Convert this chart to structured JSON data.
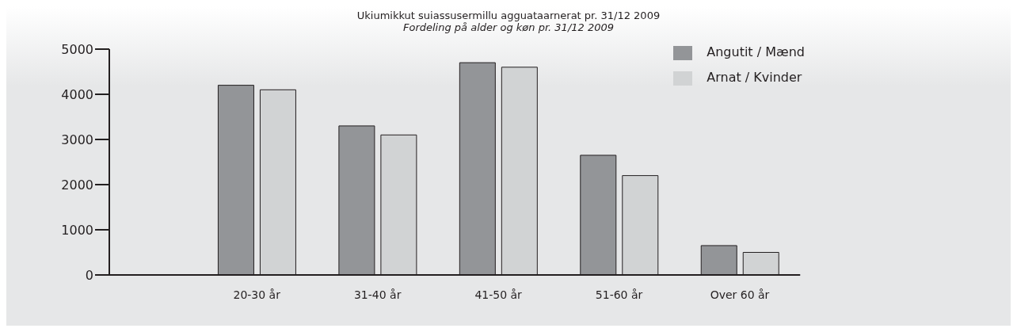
{
  "chart_data": {
    "type": "bar",
    "title": "Ukiumikkut suiassusermillu agguataarnerat pr. 31/12 2009",
    "subtitle": "Fordeling på alder og køn pr. 31/12 2009",
    "categories": [
      "20-30 år",
      "31-40 år",
      "41-50 år",
      "51-60 år",
      "Over 60 år"
    ],
    "series": [
      {
        "name": "Angutit / Mænd",
        "color": "#939598",
        "values": [
          4200,
          3300,
          4700,
          2650,
          650
        ]
      },
      {
        "name": "Arnat / Kvinder",
        "color": "#d1d3d4",
        "values": [
          4100,
          3100,
          4600,
          2200,
          500
        ]
      }
    ],
    "ylim": [
      0,
      5000
    ],
    "yticks": [
      0,
      1000,
      2000,
      3000,
      4000,
      5000
    ],
    "grid": false,
    "legend": "top right"
  }
}
